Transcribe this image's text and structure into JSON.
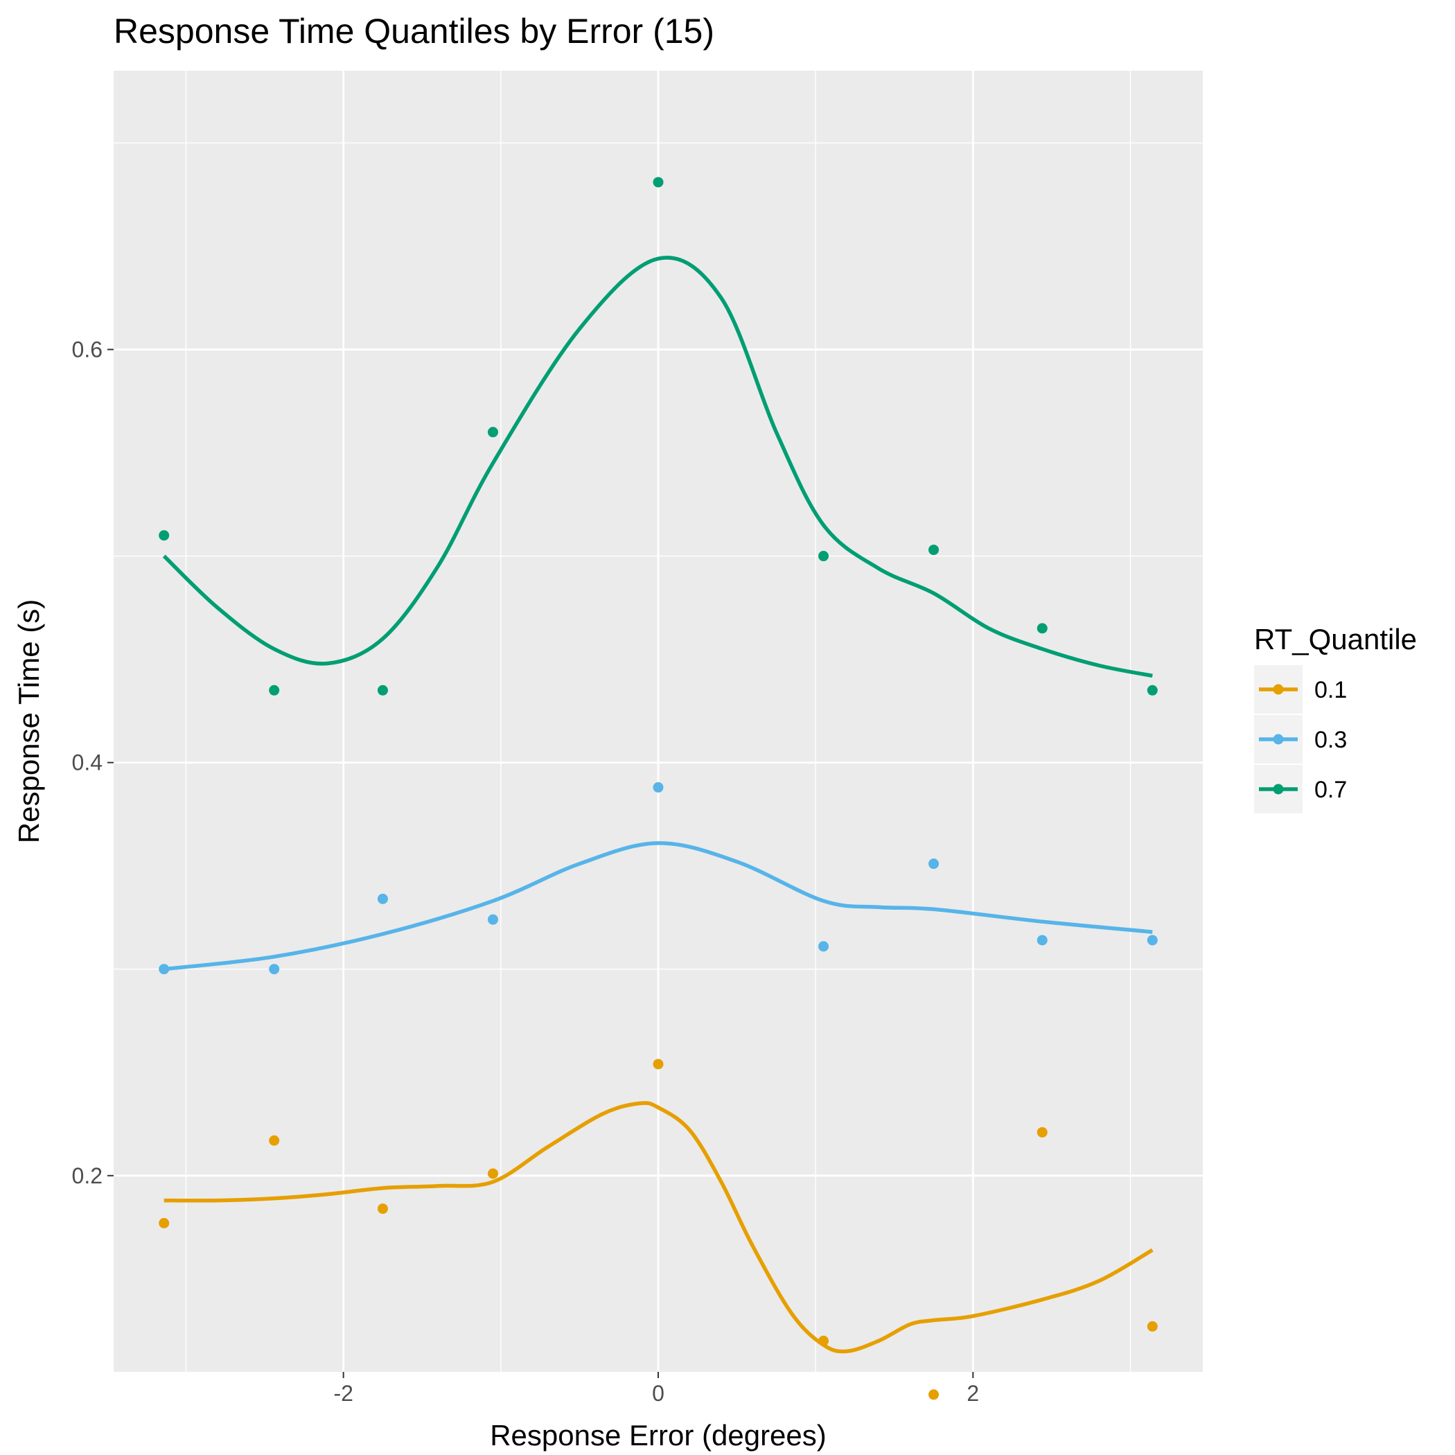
{
  "chart_data": {
    "type": "scatter",
    "title": "Response Time Quantiles by Error (15)",
    "xlabel": "Response Error (degrees)",
    "ylabel": "Response Time (s)",
    "xlim": [
      -3.46,
      3.46
    ],
    "ylim": [
      0.105,
      0.735
    ],
    "x_major_ticks": [
      -2,
      0,
      2
    ],
    "x_tick_labels": [
      "-2",
      "0",
      "2"
    ],
    "x_minor_ticks": [
      -3,
      -1,
      1,
      3
    ],
    "y_major_ticks": [
      0.2,
      0.4,
      0.6
    ],
    "y_tick_labels": [
      "0.2",
      "0.4",
      "0.6"
    ],
    "y_minor_ticks": [
      0.1,
      0.3,
      0.5,
      0.7
    ],
    "grid": true,
    "panel_background": "#ebebeb",
    "legend": {
      "title": "RT_Quantile",
      "position": "right"
    },
    "x": [
      -3.14,
      -2.44,
      -1.75,
      -1.05,
      0.0,
      1.05,
      1.75,
      2.44,
      3.14
    ],
    "series": [
      {
        "name": "0.1",
        "color": "#e69f00",
        "values": [
          0.177,
          0.217,
          0.184,
          0.201,
          0.254,
          0.12,
          0.094,
          0.221,
          0.127
        ],
        "smooth_x": [
          -3.14,
          -2.8,
          -2.44,
          -2.1,
          -1.75,
          -1.4,
          -1.05,
          -0.7,
          -0.35,
          -0.12,
          0.0,
          0.2,
          0.4,
          0.6,
          0.85,
          1.05,
          1.2,
          1.4,
          1.6,
          1.75,
          2.0,
          2.44,
          2.8,
          3.14
        ],
        "smooth_y": [
          0.188,
          0.188,
          0.189,
          0.191,
          0.194,
          0.195,
          0.197,
          0.214,
          0.23,
          0.235,
          0.233,
          0.222,
          0.197,
          0.166,
          0.133,
          0.118,
          0.115,
          0.12,
          0.128,
          0.13,
          0.132,
          0.14,
          0.149,
          0.164
        ]
      },
      {
        "name": "0.3",
        "color": "#56b4e9",
        "values": [
          0.3,
          0.3,
          0.334,
          0.324,
          0.388,
          0.311,
          0.351,
          0.314,
          0.314
        ],
        "smooth_x": [
          -3.14,
          -2.44,
          -1.75,
          -1.05,
          -0.5,
          0.0,
          0.5,
          1.05,
          1.4,
          1.75,
          2.44,
          3.14
        ],
        "smooth_y": [
          0.3,
          0.306,
          0.317,
          0.333,
          0.351,
          0.361,
          0.352,
          0.333,
          0.33,
          0.329,
          0.323,
          0.318
        ]
      },
      {
        "name": "0.7",
        "color": "#009e73",
        "values": [
          0.51,
          0.435,
          0.435,
          0.56,
          0.681,
          0.5,
          0.503,
          0.465,
          0.435
        ],
        "smooth_x": [
          -3.14,
          -2.8,
          -2.44,
          -2.1,
          -1.75,
          -1.4,
          -1.05,
          -0.5,
          0.0,
          0.4,
          0.75,
          1.05,
          1.4,
          1.75,
          2.1,
          2.44,
          2.8,
          3.14
        ],
        "smooth_y": [
          0.5,
          0.475,
          0.455,
          0.448,
          0.46,
          0.495,
          0.545,
          0.61,
          0.644,
          0.625,
          0.56,
          0.515,
          0.494,
          0.482,
          0.465,
          0.455,
          0.447,
          0.442
        ]
      }
    ]
  }
}
